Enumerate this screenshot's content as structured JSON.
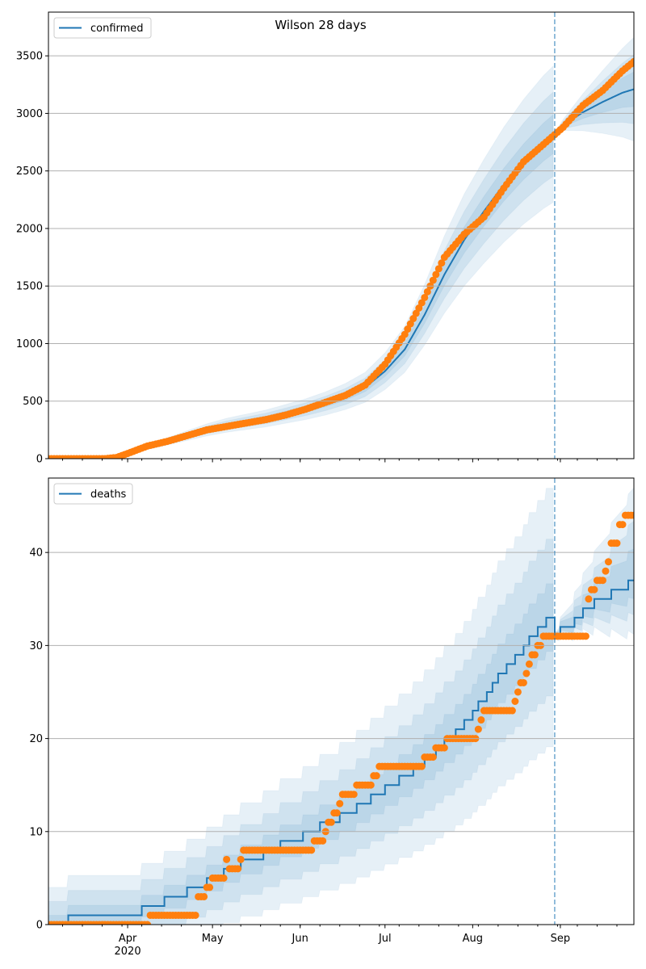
{
  "chart_data": [
    {
      "type": "line",
      "title": "Wilson 28 days",
      "legend": {
        "label": "confirmed",
        "placement": "top-left"
      },
      "x_start_date": "2020-03-04",
      "x_range_days": [
        0,
        207
      ],
      "forecast_start_day": 179,
      "ylim": [
        0,
        3880
      ],
      "yticks": [
        0,
        500,
        1000,
        1500,
        2000,
        2500,
        3000,
        3500
      ],
      "grid": "y",
      "series_color": "#1f77b4",
      "observed_color": "#ff7f0e",
      "model_median": {
        "days": [
          0,
          21,
          28,
          35,
          42,
          49,
          56,
          63,
          70,
          77,
          84,
          91,
          98,
          105,
          112,
          119,
          126,
          133,
          140,
          147,
          154,
          161,
          168,
          175,
          179,
          182,
          189,
          196,
          203,
          207
        ],
        "values": [
          0,
          10,
          40,
          100,
          150,
          200,
          250,
          290,
          320,
          350,
          390,
          430,
          480,
          540,
          620,
          760,
          950,
          1250,
          1600,
          1900,
          2150,
          2380,
          2580,
          2750,
          2830,
          2900,
          3010,
          3100,
          3180,
          3210
        ]
      },
      "observed": {
        "days": [
          0,
          20,
          24,
          28,
          35,
          42,
          49,
          56,
          63,
          70,
          77,
          84,
          91,
          98,
          105,
          112,
          119,
          126,
          133,
          140,
          147,
          154,
          161,
          168,
          175,
          182,
          189,
          196,
          203,
          207
        ],
        "values": [
          0,
          0,
          10,
          45,
          110,
          150,
          200,
          250,
          280,
          310,
          340,
          380,
          430,
          490,
          550,
          640,
          820,
          1080,
          1400,
          1750,
          1950,
          2100,
          2350,
          2580,
          2730,
          2880,
          3070,
          3200,
          3370,
          3450
        ]
      },
      "band_halfwidth_fraction": [
        0.06,
        0.13,
        0.21
      ],
      "forecast_band_halfwidth_end": [
        150,
        300,
        450
      ]
    },
    {
      "type": "line",
      "legend": {
        "label": "deaths",
        "placement": "top-left"
      },
      "x_start_date": "2020-03-04",
      "x_range_days": [
        0,
        207
      ],
      "forecast_start_day": 179,
      "ylim": [
        0,
        48
      ],
      "yticks": [
        0,
        10,
        20,
        30,
        40
      ],
      "grid": "y",
      "model_median_steps": [
        [
          0,
          0
        ],
        [
          7,
          1
        ],
        [
          33,
          2
        ],
        [
          41,
          3
        ],
        [
          49,
          4
        ],
        [
          56,
          5
        ],
        [
          62,
          6
        ],
        [
          68,
          7
        ],
        [
          76,
          8
        ],
        [
          82,
          9
        ],
        [
          90,
          10
        ],
        [
          96,
          11
        ],
        [
          103,
          12
        ],
        [
          109,
          13
        ],
        [
          114,
          14
        ],
        [
          119,
          15
        ],
        [
          124,
          16
        ],
        [
          129,
          17
        ],
        [
          133,
          18
        ],
        [
          137,
          19
        ],
        [
          140,
          20
        ],
        [
          144,
          21
        ],
        [
          147,
          22
        ],
        [
          150,
          23
        ],
        [
          152,
          24
        ],
        [
          155,
          25
        ],
        [
          157,
          26
        ],
        [
          159,
          27
        ],
        [
          162,
          28
        ],
        [
          165,
          29
        ],
        [
          168,
          30
        ],
        [
          170,
          31
        ],
        [
          173,
          32
        ],
        [
          176,
          33
        ],
        [
          179,
          31
        ],
        [
          181,
          32
        ],
        [
          186,
          33
        ],
        [
          189,
          34
        ],
        [
          193,
          35
        ],
        [
          199,
          36
        ],
        [
          205,
          37
        ]
      ],
      "observed_steps": [
        [
          0,
          0
        ],
        [
          36,
          1
        ],
        [
          53,
          3
        ],
        [
          56,
          4
        ],
        [
          58,
          5
        ],
        [
          63,
          7
        ],
        [
          64,
          6
        ],
        [
          68,
          7
        ],
        [
          69,
          8
        ],
        [
          94,
          9
        ],
        [
          98,
          10
        ],
        [
          99,
          11
        ],
        [
          101,
          12
        ],
        [
          103,
          13
        ],
        [
          104,
          14
        ],
        [
          109,
          15
        ],
        [
          115,
          16
        ],
        [
          117,
          17
        ],
        [
          133,
          18
        ],
        [
          137,
          19
        ],
        [
          141,
          20
        ],
        [
          152,
          21
        ],
        [
          153,
          22
        ],
        [
          154,
          23
        ],
        [
          165,
          24
        ],
        [
          166,
          25
        ],
        [
          167,
          26
        ],
        [
          169,
          27
        ],
        [
          170,
          28
        ],
        [
          171,
          29
        ],
        [
          173,
          30
        ],
        [
          175,
          31
        ],
        [
          191,
          35
        ],
        [
          192,
          36
        ],
        [
          194,
          37
        ],
        [
          197,
          38
        ],
        [
          198,
          39
        ],
        [
          199,
          41
        ],
        [
          202,
          43
        ],
        [
          204,
          44
        ]
      ],
      "band_halfwidth": {
        "base": [
          1,
          2.5,
          4
        ],
        "slope": [
          0.08,
          0.18,
          0.3
        ]
      },
      "forecast_band_halfwidth_end": [
        2.5,
        5,
        8
      ]
    }
  ],
  "x_ticks": [
    {
      "day": 28,
      "label": "Apr",
      "sub": "2020"
    },
    {
      "day": 58,
      "label": "May"
    },
    {
      "day": 89,
      "label": "Jun"
    },
    {
      "day": 119,
      "label": "Jul"
    },
    {
      "day": 150,
      "label": "Aug"
    },
    {
      "day": 181,
      "label": "Sep"
    }
  ]
}
